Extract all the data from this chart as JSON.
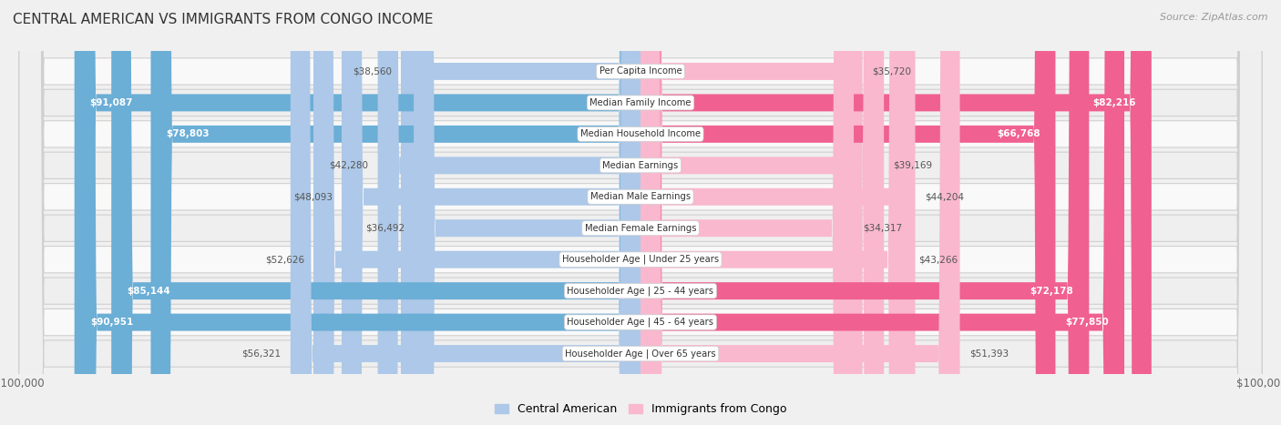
{
  "title": "CENTRAL AMERICAN VS IMMIGRANTS FROM CONGO INCOME",
  "source": "Source: ZipAtlas.com",
  "categories": [
    "Per Capita Income",
    "Median Family Income",
    "Median Household Income",
    "Median Earnings",
    "Median Male Earnings",
    "Median Female Earnings",
    "Householder Age | Under 25 years",
    "Householder Age | 25 - 44 years",
    "Householder Age | 45 - 64 years",
    "Householder Age | Over 65 years"
  ],
  "left_values": [
    38560,
    91087,
    78803,
    42280,
    48093,
    36492,
    52626,
    85144,
    90951,
    56321
  ],
  "right_values": [
    35720,
    82216,
    66768,
    39169,
    44204,
    34317,
    43266,
    72178,
    77850,
    51393
  ],
  "left_labels": [
    "$38,560",
    "$91,087",
    "$78,803",
    "$42,280",
    "$48,093",
    "$36,492",
    "$52,626",
    "$85,144",
    "$90,951",
    "$56,321"
  ],
  "right_labels": [
    "$35,720",
    "$82,216",
    "$66,768",
    "$39,169",
    "$44,204",
    "$34,317",
    "$43,266",
    "$72,178",
    "$77,850",
    "$51,393"
  ],
  "left_color_light": "#adc8e8",
  "left_color_dark": "#6baed6",
  "right_color_light": "#f9b8ce",
  "right_color_dark": "#f06090",
  "max_value": 100000,
  "bg_color": "#f0f0f0",
  "row_colors": [
    "#f9f9f9",
    "#efefef"
  ],
  "left_legend": "Central American",
  "right_legend": "Immigrants from Congo",
  "inside_label_threshold": 65000
}
